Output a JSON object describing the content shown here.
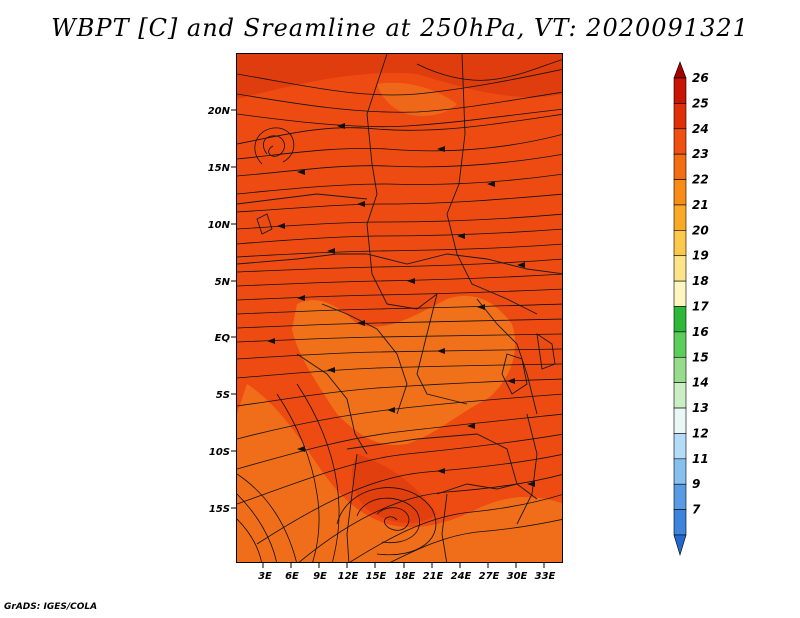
{
  "title": "WBPT [C] and Sreamline at 250hPa, VT: 2020091321",
  "credit": "GrADS: IGES/COLA",
  "map": {
    "lat_labels": [
      "20N",
      "15N",
      "10N",
      "5N",
      "EQ",
      "5S",
      "10S",
      "15S"
    ],
    "lon_labels": [
      "3E",
      "6E",
      "9E",
      "12E",
      "15E",
      "18E",
      "21E",
      "24E",
      "27E",
      "30E",
      "33E"
    ],
    "fill_colors": {
      "dominant": "#ee4b12",
      "light": "#f07a1c",
      "dark": "#d2300a"
    }
  },
  "colorbar": {
    "labels": [
      "26",
      "25",
      "24",
      "23",
      "22",
      "21",
      "20",
      "19",
      "18",
      "17",
      "16",
      "15",
      "14",
      "13",
      "12",
      "11",
      "9",
      "7"
    ],
    "colors": [
      "#a50000",
      "#c81404",
      "#e0300a",
      "#f05012",
      "#f46c14",
      "#f88c16",
      "#fbaa28",
      "#fcc84c",
      "#fde48a",
      "#fdf6c0",
      "#2eb83a",
      "#5ccc5a",
      "#96dc8c",
      "#cceec4",
      "#e8f8f4",
      "#b4dcf8",
      "#86c0f0",
      "#5a9ce4",
      "#3c84dc",
      "#2268d0"
    ]
  }
}
